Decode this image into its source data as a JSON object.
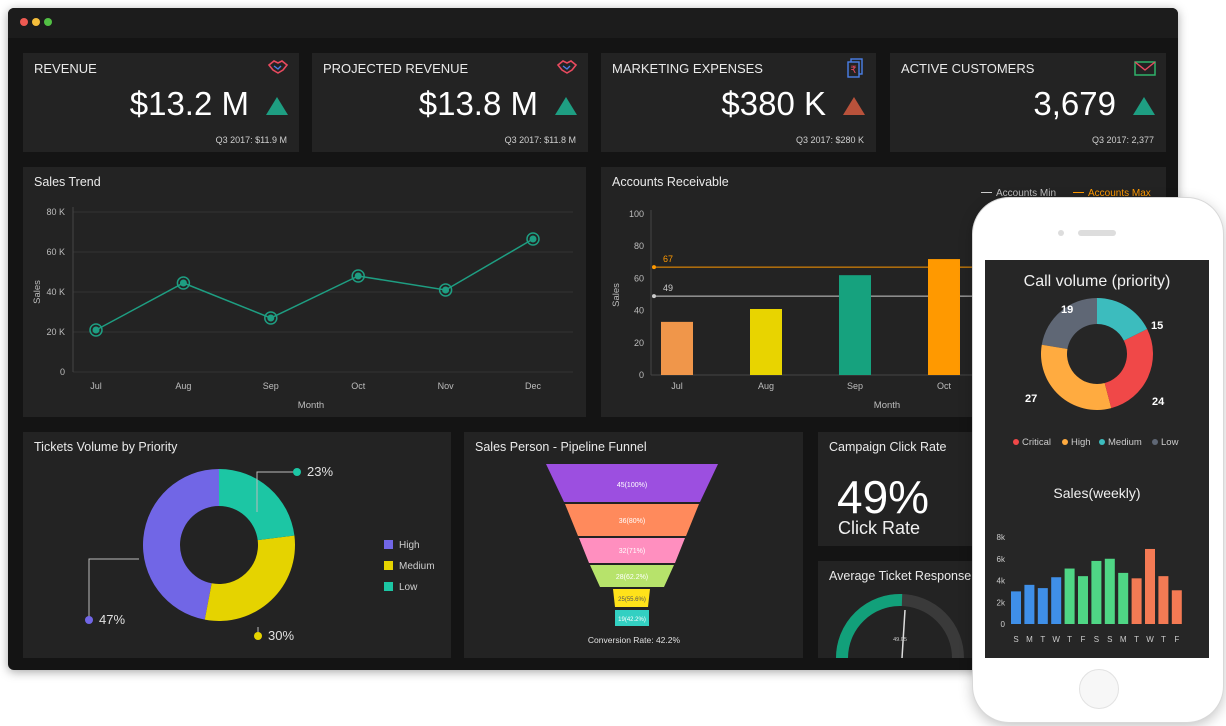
{
  "kpis": [
    {
      "title": "REVENUE",
      "value": "$13.2 M",
      "trend": "up",
      "sub": "Q3 2017: $11.9 M",
      "icon": "handshake-icon"
    },
    {
      "title": "PROJECTED REVENUE",
      "value": "$13.8 M",
      "trend": "up",
      "sub": "Q3 2017: $11.8 M",
      "icon": "handshake-icon"
    },
    {
      "title": "MARKETING EXPENSES",
      "value": "$380 K",
      "trend": "down",
      "sub": "Q3 2017: $280 K",
      "icon": "rupee-invoice-icon"
    },
    {
      "title": "ACTIVE CUSTOMERS",
      "value": "3,679",
      "trend": "up",
      "sub": "Q3 2017: 2,377",
      "icon": "envelope-icon"
    }
  ],
  "colors": {
    "up": "#1e9e82",
    "down": "#b9523b",
    "panel": "#232323",
    "bg": "#141414"
  },
  "sales_trend": {
    "title": "Sales Trend"
  },
  "accounts_receivable": {
    "title": "Accounts Receivable",
    "legend_min": "Accounts Min",
    "legend_max": "Accounts Max"
  },
  "tickets": {
    "title": "Tickets Volume by Priority",
    "labels": {
      "low": "23%",
      "high": "47%",
      "medium": "30%"
    },
    "legend": [
      "High",
      "Medium",
      "Low"
    ]
  },
  "funnel": {
    "title": "Sales Person - Pipeline Funnel",
    "stages": [
      "45(100%)",
      "36(80%)",
      "32(71%)",
      "28(62.2%)",
      "25(55.6%)",
      "19(42.2%)"
    ],
    "conversion": "Conversion Rate: 42.2%"
  },
  "campaign": {
    "title": "Campaign Click Rate",
    "value": "49%",
    "label": "Click Rate"
  },
  "ticket_response": {
    "title": "Average Ticket Response",
    "center": "49.05"
  },
  "phone": {
    "call_volume": {
      "title": "Call volume (priority)",
      "labels": [
        "19",
        "15",
        "24",
        "27"
      ],
      "legend": [
        "Critical",
        "High",
        "Medium",
        "Low"
      ]
    },
    "sales_weekly": {
      "title": "Sales(weekly)"
    }
  },
  "chart_data": [
    {
      "type": "line",
      "title": "Sales Trend",
      "xlabel": "Month",
      "ylabel": "Sales",
      "categories": [
        "Jul",
        "Aug",
        "Sep",
        "Oct",
        "Nov",
        "Dec"
      ],
      "values": [
        21000,
        44500,
        27000,
        48000,
        41000,
        66500
      ],
      "ylim": [
        0,
        80000
      ],
      "yticks": [
        "0",
        "20 K",
        "40 K",
        "60 K",
        "80 K"
      ],
      "color": "#1e9e82"
    },
    {
      "type": "bar",
      "title": "Accounts Receivable",
      "xlabel": "Month",
      "ylabel": "Sales",
      "categories": [
        "Jul",
        "Aug",
        "Sep",
        "Oct"
      ],
      "values": [
        33,
        41,
        62,
        72
      ],
      "colors": [
        "#f0964a",
        "#e8d400",
        "#16a27e",
        "#ff9900"
      ],
      "ylim": [
        0,
        100
      ],
      "yticks": [
        "0",
        "20",
        "40",
        "60",
        "80",
        "100"
      ],
      "reference_lines": [
        {
          "name": "Accounts Min",
          "value": 49,
          "label": "49",
          "color": "#cccccc"
        },
        {
          "name": "Accounts Max",
          "value": 67,
          "label": "67",
          "color": "#ff9900"
        }
      ]
    },
    {
      "type": "pie",
      "title": "Tickets Volume by Priority",
      "series": [
        {
          "name": "Low",
          "value": 23,
          "color": "#1cc6a4"
        },
        {
          "name": "Medium",
          "value": 30,
          "color": "#e5d300"
        },
        {
          "name": "High",
          "value": 47,
          "color": "#7166e6"
        }
      ]
    },
    {
      "type": "pie",
      "title": "Call volume (priority)",
      "series": [
        {
          "name": "Medium",
          "value": 15,
          "color": "#3cbcbe"
        },
        {
          "name": "Critical",
          "value": 24,
          "color": "#f04848"
        },
        {
          "name": "High",
          "value": 27,
          "color": "#ffab40"
        },
        {
          "name": "Low",
          "value": 19,
          "color": "#5f6775"
        }
      ]
    },
    {
      "type": "bar",
      "title": "Sales(weekly)",
      "categories": [
        "S",
        "M",
        "T",
        "W",
        "T",
        "F",
        "S",
        "S",
        "M",
        "T",
        "W",
        "T",
        "F"
      ],
      "values": [
        3000,
        3600,
        3300,
        4300,
        5100,
        4400,
        5800,
        6000,
        4700,
        4200,
        6900,
        4400,
        3100
      ],
      "colors": [
        "#3f8fe8",
        "#3f8fe8",
        "#3f8fe8",
        "#3f8fe8",
        "#4fd685",
        "#4fd685",
        "#4fd685",
        "#4fd685",
        "#4fd685",
        "#f47a54",
        "#f47a54",
        "#f47a54",
        "#f47a54"
      ],
      "ylim": [
        0,
        8000
      ],
      "yticks": [
        "0",
        "2k",
        "4k",
        "6k",
        "8k"
      ]
    }
  ]
}
